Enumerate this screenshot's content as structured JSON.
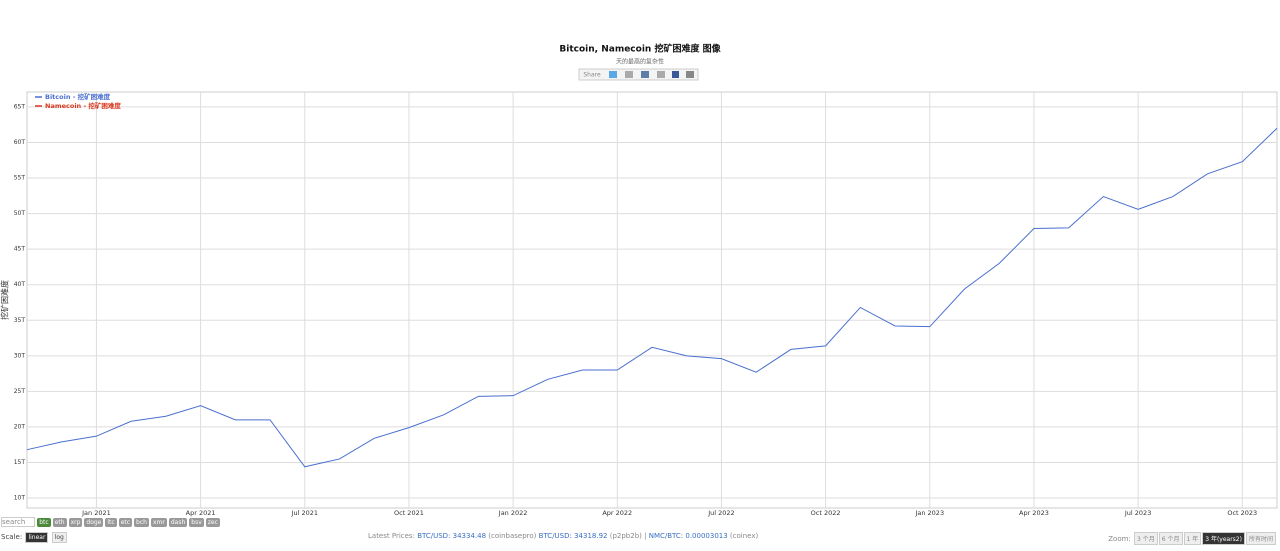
{
  "chart_data": {
    "type": "line",
    "title": "Bitcoin, Namecoin 挖矿困难度 图像",
    "subtitle": "天的最高的复杂性",
    "y_label": "挖矿困难度",
    "x": [
      "2020-11",
      "2020-12",
      "2021-01",
      "2021-02",
      "2021-03",
      "2021-04",
      "2021-05",
      "2021-06",
      "2021-07",
      "2021-08",
      "2021-09",
      "2021-10",
      "2021-11",
      "2021-12",
      "2022-01",
      "2022-02",
      "2022-03",
      "2022-04",
      "2022-05",
      "2022-06",
      "2022-07",
      "2022-08",
      "2022-09",
      "2022-10",
      "2022-11",
      "2022-12",
      "2023-01",
      "2023-02",
      "2023-03",
      "2023-04",
      "2023-05",
      "2023-06",
      "2023-07",
      "2023-08",
      "2023-09",
      "2023-10",
      "2023-11"
    ],
    "series": [
      {
        "name": "Bitcoin - 挖矿困难度",
        "color": "#4a6fd0",
        "values": [
          16.8,
          17.9,
          18.7,
          20.8,
          21.5,
          23.0,
          21.0,
          21.0,
          14.4,
          15.5,
          18.4,
          19.9,
          21.7,
          24.3,
          24.4,
          26.7,
          28.0,
          28.0,
          31.2,
          30.0,
          29.6,
          27.7,
          30.9,
          31.4,
          36.8,
          34.2,
          34.1,
          39.4,
          43.0,
          47.9,
          48.0,
          52.4,
          50.6,
          52.4,
          55.6,
          57.3,
          62.0
        ]
      },
      {
        "name": "Namecoin - 挖矿困难度",
        "color": "#d9381e",
        "values": [
          null,
          null,
          null,
          null,
          null,
          null,
          null,
          null,
          null,
          null,
          null,
          null,
          null,
          null,
          null,
          null,
          null,
          null,
          null,
          null,
          null,
          null,
          null,
          null,
          null,
          null,
          null,
          null,
          null,
          null,
          null,
          null,
          null,
          null,
          null,
          null,
          null
        ]
      }
    ],
    "xlim": [
      "2020-11",
      "2023-11"
    ],
    "xticks": [
      {
        "value": "2021-01",
        "label": "Jan 2021"
      },
      {
        "value": "2021-04",
        "label": "Apr 2021"
      },
      {
        "value": "2021-07",
        "label": "Jul 2021"
      },
      {
        "value": "2021-10",
        "label": "Oct 2021"
      },
      {
        "value": "2022-01",
        "label": "Jan 2022"
      },
      {
        "value": "2022-04",
        "label": "Apr 2022"
      },
      {
        "value": "2022-07",
        "label": "Jul 2022"
      },
      {
        "value": "2022-10",
        "label": "Oct 2022"
      },
      {
        "value": "2023-01",
        "label": "Jan 2023"
      },
      {
        "value": "2023-04",
        "label": "Apr 2023"
      },
      {
        "value": "2023-07",
        "label": "Jul 2023"
      },
      {
        "value": "2023-10",
        "label": "Oct 2023"
      }
    ],
    "ylim": [
      8.6,
      67.1
    ],
    "yticks": [
      {
        "value": 10,
        "label": "10T"
      },
      {
        "value": 15,
        "label": "15T"
      },
      {
        "value": 20,
        "label": "20T"
      },
      {
        "value": 25,
        "label": "25T"
      },
      {
        "value": 30,
        "label": "30T"
      },
      {
        "value": 35,
        "label": "35T"
      },
      {
        "value": 40,
        "label": "40T"
      },
      {
        "value": 45,
        "label": "45T"
      },
      {
        "value": 50,
        "label": "50T"
      },
      {
        "value": 55,
        "label": "55T"
      },
      {
        "value": 60,
        "label": "60T"
      },
      {
        "value": 65,
        "label": "65T"
      }
    ],
    "grid": true
  },
  "ui": {
    "share": "Share",
    "search": "search",
    "coins": [
      "btc",
      "eth",
      "xrp",
      "doge",
      "ltc",
      "etc",
      "bch",
      "xmr",
      "dash",
      "bsv",
      "zec"
    ],
    "scale_label": "Scale:",
    "scale_options": [
      "linear",
      "log"
    ],
    "prices_label": "Latest Prices:",
    "prices": [
      {
        "pair": "BTC/USD: 34334.48",
        "source": "(coinbasepro)"
      },
      {
        "pair": "BTC/USD: 34318.92",
        "source": "(p2pb2b)"
      },
      {
        "pair": "NMC/BTC: 0.00003013",
        "source": "(coinex)"
      }
    ],
    "separator": "|",
    "zoom_label": "Zoom:",
    "zoom_options": [
      "3 个月",
      "6 个月",
      "1 年",
      "3 年(years2)",
      "所有时间"
    ]
  }
}
